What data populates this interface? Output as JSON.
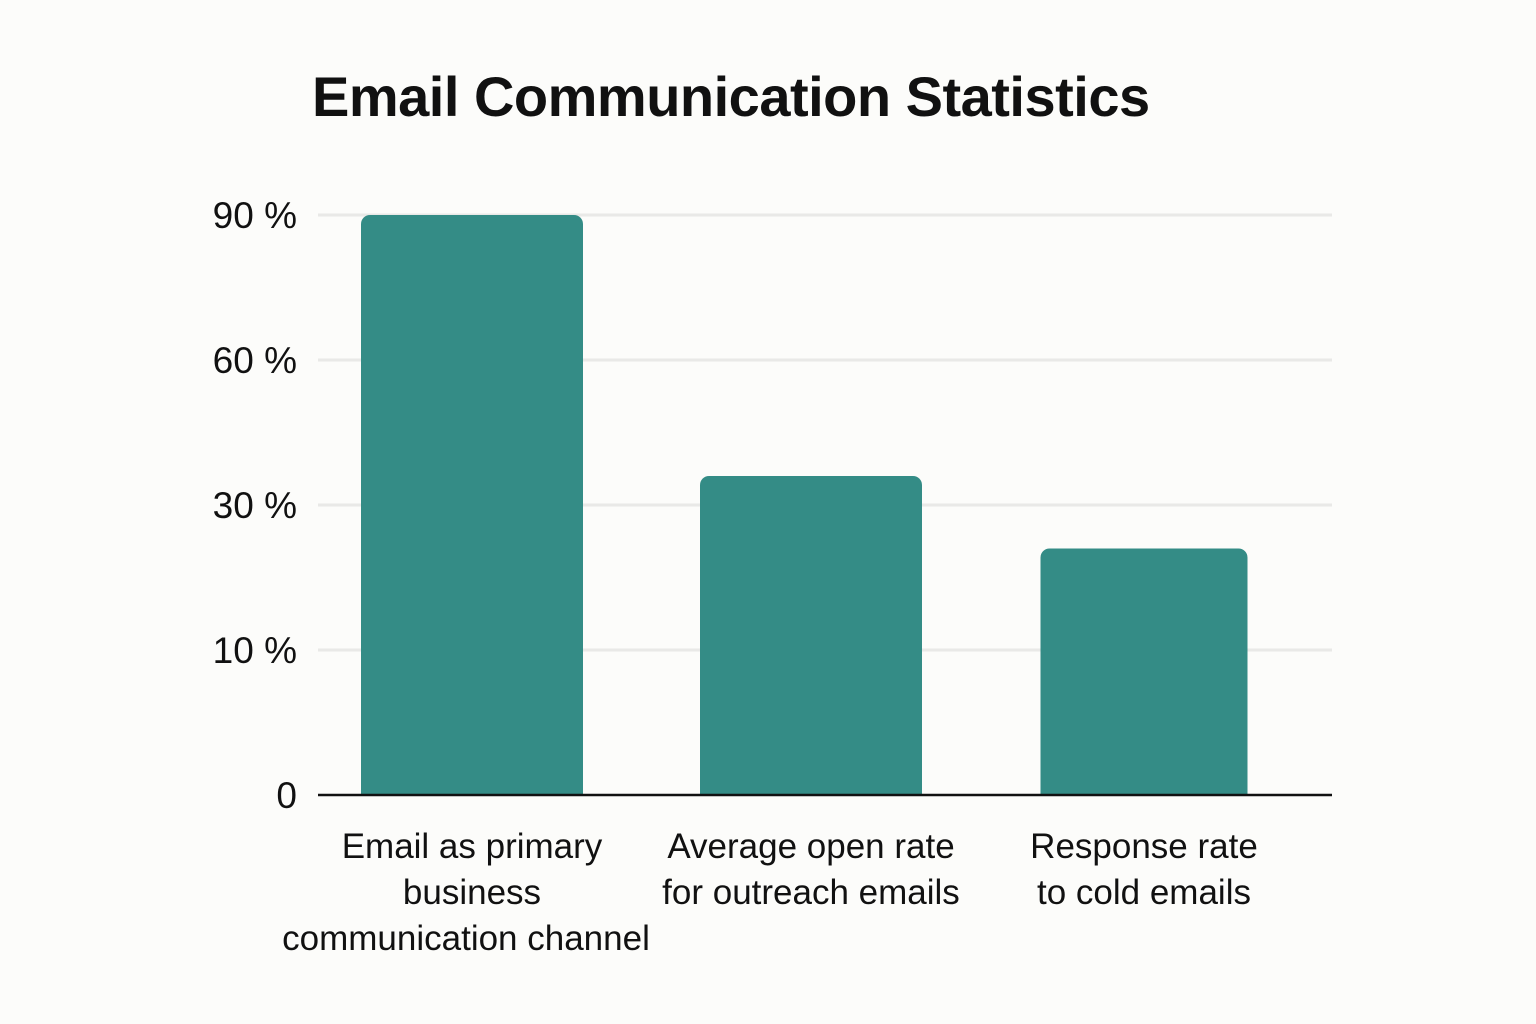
{
  "chart_data": {
    "type": "bar",
    "title": "Email Communication Statistics",
    "xlabel": "",
    "ylabel": "",
    "categories": [
      [
        "Email as primary",
        "business",
        "communication channel"
      ],
      [
        "Average open rate",
        "for outreach emails"
      ],
      [
        "Response rate",
        "to cold emails"
      ]
    ],
    "values": [
      90,
      36,
      24
    ],
    "y_ticks": [
      "0",
      "10 %",
      "30 %",
      "60 %",
      "90 %"
    ],
    "y_tick_positions": [
      0,
      1,
      2,
      3,
      4
    ],
    "y_scale": "ordinal ticks: 0, 10%, 30%, 60%, 90% evenly spaced",
    "bar_color": "#348c86",
    "grid": true,
    "legend": "none"
  }
}
